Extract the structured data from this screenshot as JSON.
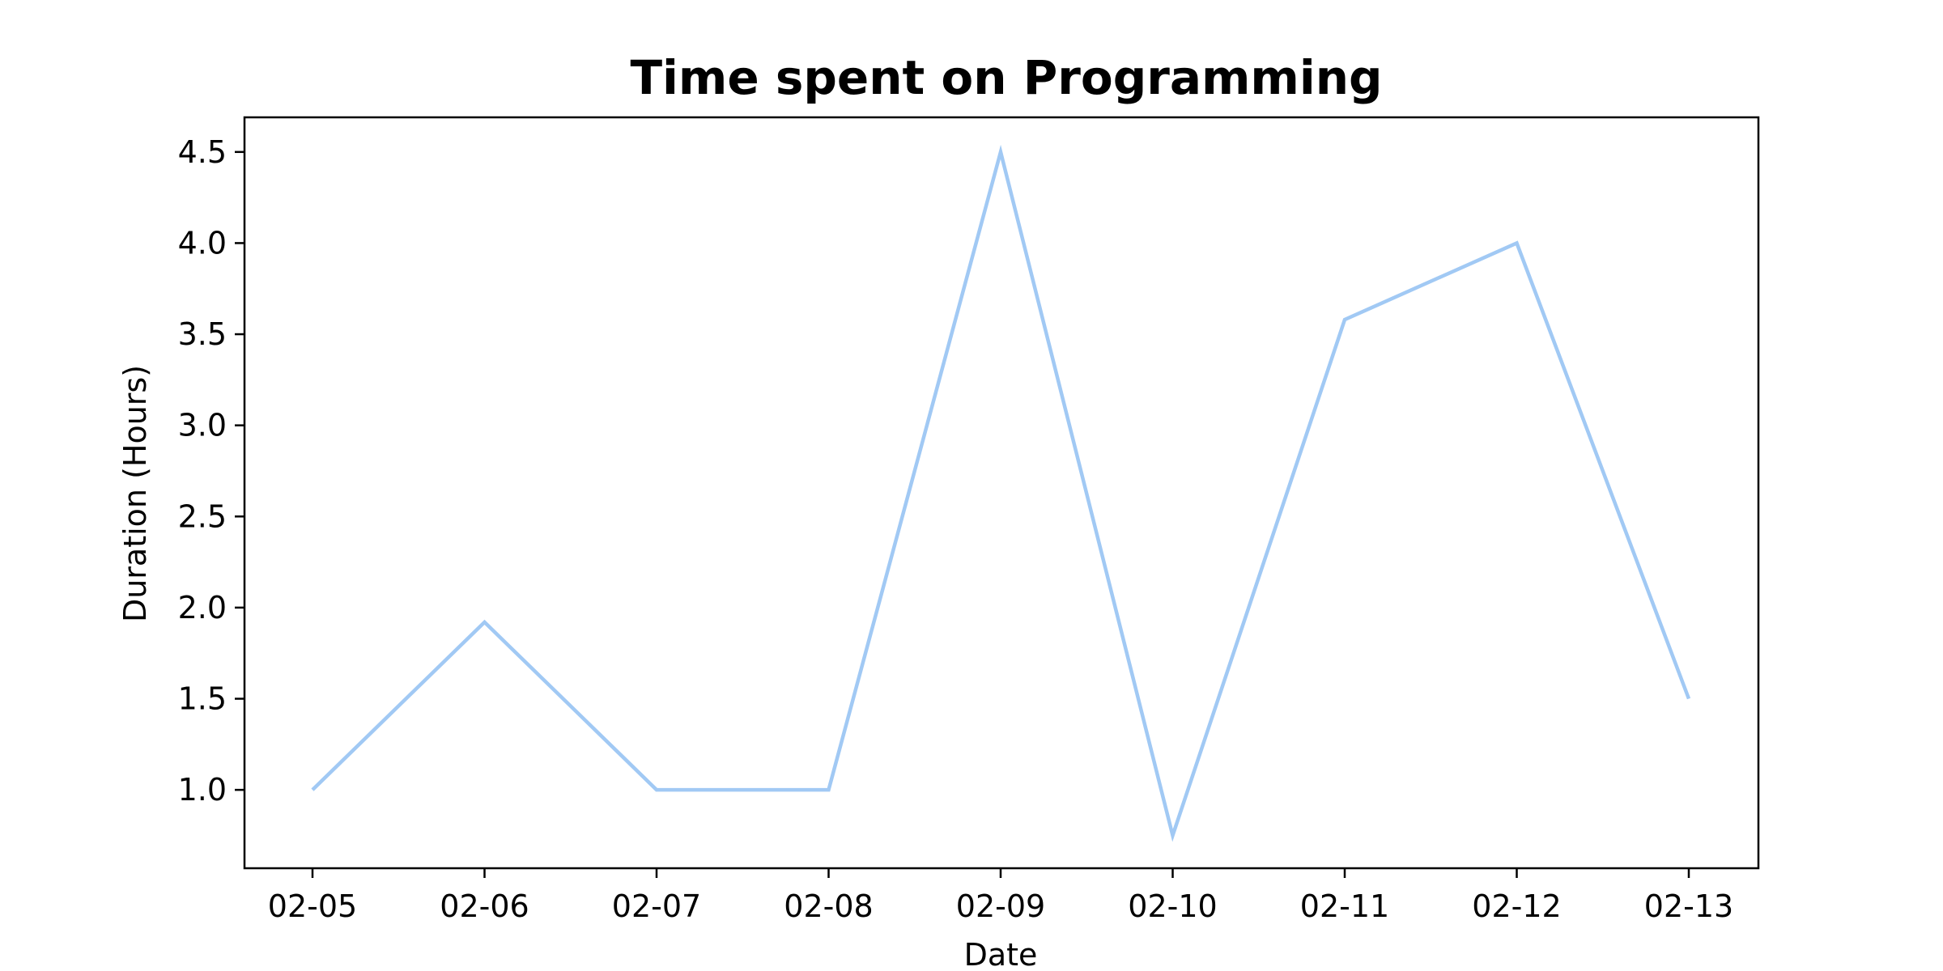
{
  "chart_data": {
    "type": "line",
    "title": "Time spent on Programming",
    "xlabel": "Date",
    "ylabel": "Duration (Hours)",
    "categories": [
      "02-05",
      "02-06",
      "02-07",
      "02-08",
      "02-09",
      "02-10",
      "02-11",
      "02-12",
      "02-13"
    ],
    "series": [
      {
        "values": [
          1.0,
          1.92,
          1.0,
          1.0,
          4.5,
          0.75,
          3.58,
          4.0,
          1.5
        ],
        "color": "#a1c9f4"
      }
    ],
    "ylim": [
      0.57,
      4.69
    ],
    "yticks": [
      1.0,
      1.5,
      2.0,
      2.5,
      3.0,
      3.5,
      4.0,
      4.5
    ],
    "ytick_labels": [
      "1.0",
      "1.5",
      "2.0",
      "2.5",
      "3.0",
      "3.5",
      "4.0",
      "4.5"
    ],
    "grid": false,
    "legend": "none"
  }
}
